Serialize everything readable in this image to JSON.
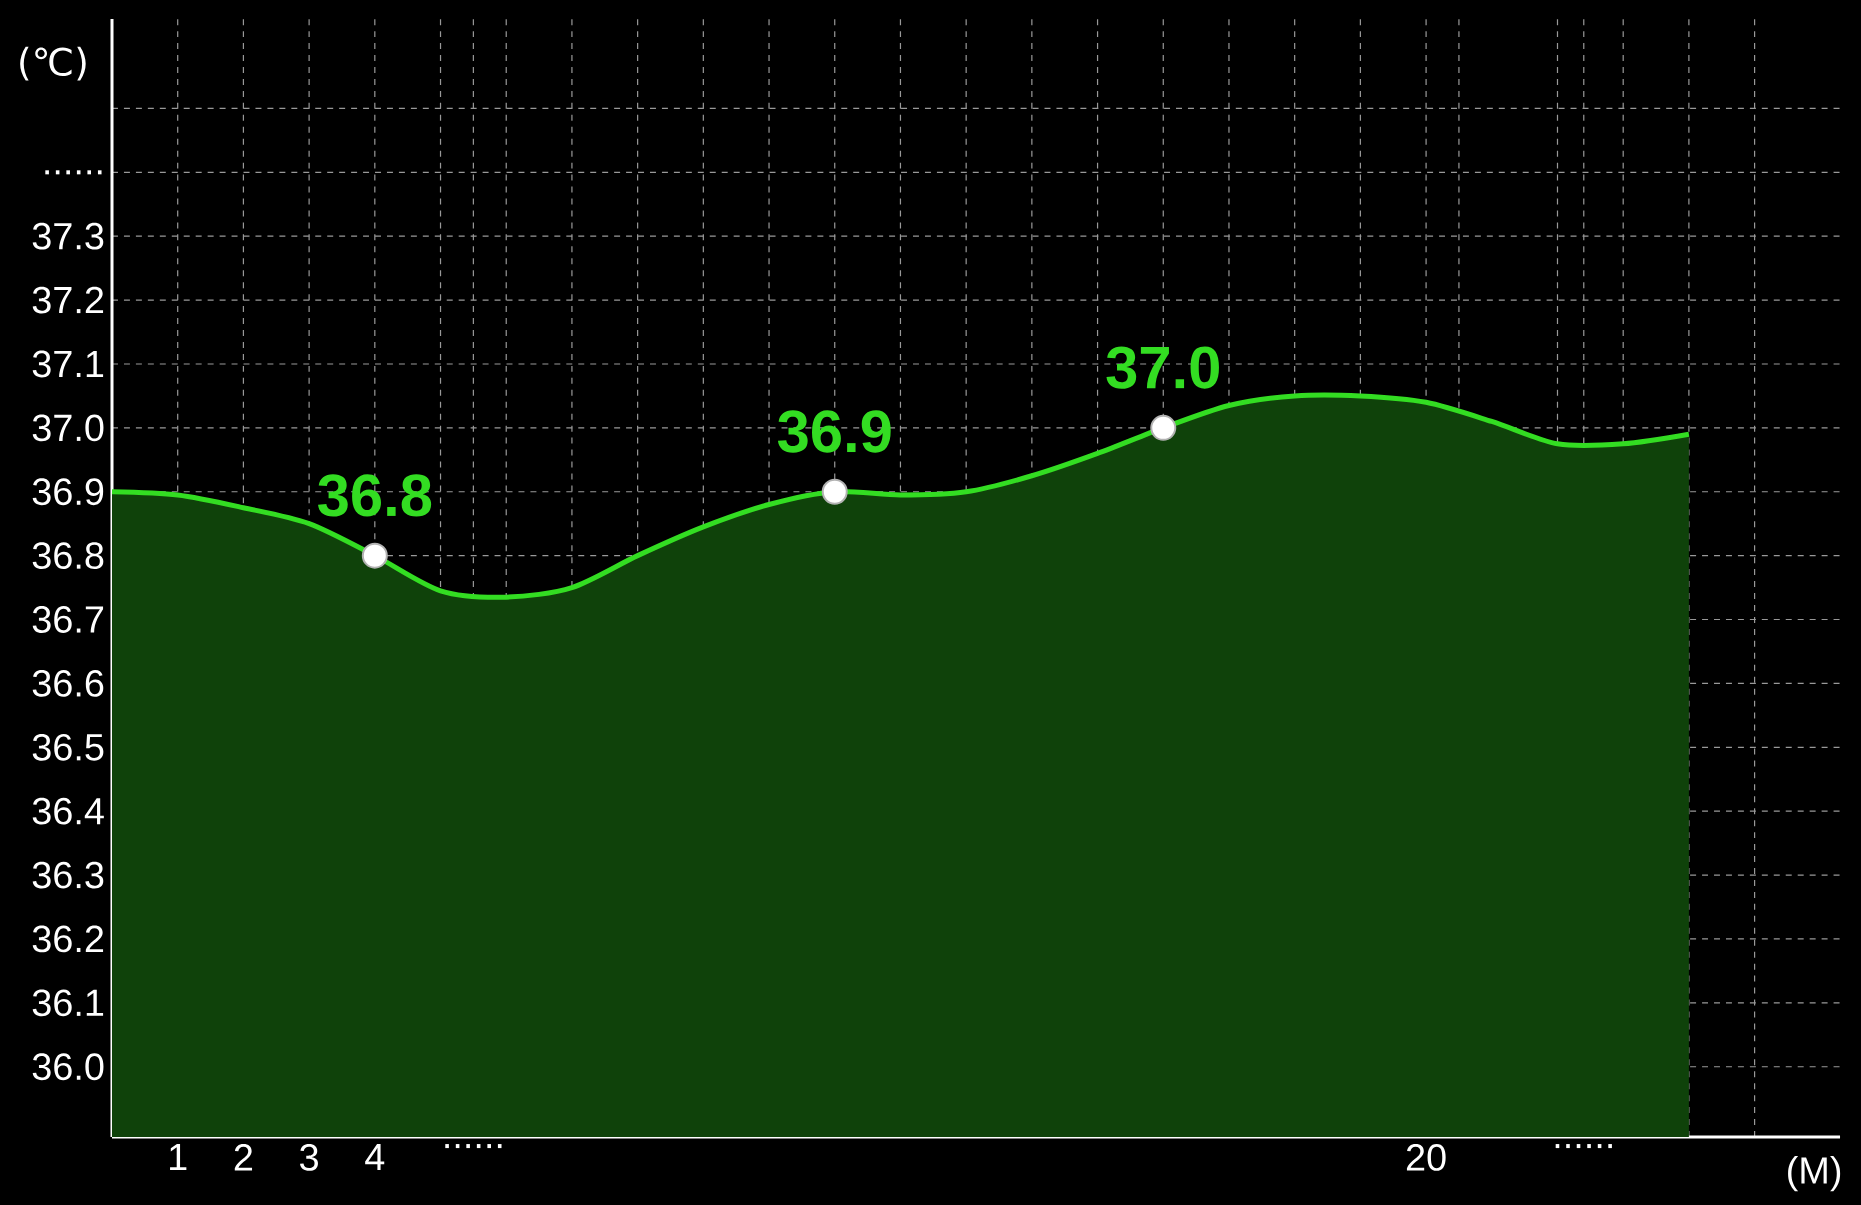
{
  "chart_data": {
    "type": "area",
    "xlabel": "(M)",
    "ylabel": "(℃)",
    "xlim": [
      0,
      26.3
    ],
    "ylim": [
      35.89,
      37.64
    ],
    "xticks": [
      {
        "value": 1,
        "label": "1"
      },
      {
        "value": 2,
        "label": "2"
      },
      {
        "value": 3,
        "label": "3"
      },
      {
        "value": 4,
        "label": "4"
      },
      {
        "value": 5,
        "label": null
      },
      {
        "value": 5.5,
        "label": "......"
      },
      {
        "value": 6,
        "label": null
      },
      {
        "value": 7,
        "label": null
      },
      {
        "value": 8,
        "label": null
      },
      {
        "value": 9,
        "label": null
      },
      {
        "value": 10,
        "label": null
      },
      {
        "value": 11,
        "label": null
      },
      {
        "value": 12,
        "label": null
      },
      {
        "value": 13,
        "label": null
      },
      {
        "value": 14,
        "label": null
      },
      {
        "value": 15,
        "label": null
      },
      {
        "value": 16,
        "label": null
      },
      {
        "value": 17,
        "label": null
      },
      {
        "value": 18,
        "label": null
      },
      {
        "value": 19,
        "label": null
      },
      {
        "value": 20.5,
        "label": null
      },
      {
        "value": 20,
        "label": "20"
      },
      {
        "value": 22,
        "label": null
      },
      {
        "value": 22.4,
        "label": "......"
      },
      {
        "value": 23,
        "label": null
      },
      {
        "value": 24,
        "label": null
      },
      {
        "value": 25,
        "label": null
      }
    ],
    "yticks": [
      {
        "value": 36.0,
        "label": "36.0"
      },
      {
        "value": 36.1,
        "label": "36.1"
      },
      {
        "value": 36.2,
        "label": "36.2"
      },
      {
        "value": 36.3,
        "label": "36.3"
      },
      {
        "value": 36.4,
        "label": "36.4"
      },
      {
        "value": 36.5,
        "label": "36.5"
      },
      {
        "value": 36.6,
        "label": "36.6"
      },
      {
        "value": 36.7,
        "label": "36.7"
      },
      {
        "value": 36.8,
        "label": "36.8"
      },
      {
        "value": 36.9,
        "label": "36.9"
      },
      {
        "value": 37.0,
        "label": "37.0"
      },
      {
        "value": 37.1,
        "label": "37.1"
      },
      {
        "value": 37.2,
        "label": "37.2"
      },
      {
        "value": 37.3,
        "label": "37.3"
      },
      {
        "value": 37.4,
        "label": "......"
      },
      {
        "value": 37.5,
        "label": null
      }
    ],
    "grid": true,
    "series": [
      {
        "color": "#33dd22",
        "x": [
          0,
          1,
          2,
          3,
          4,
          5,
          6,
          7,
          8,
          9,
          10,
          11,
          12,
          13,
          14,
          15,
          16,
          17,
          18,
          19,
          20,
          21,
          22,
          23,
          24
        ],
        "values": [
          36.9,
          36.895,
          36.875,
          36.85,
          36.8,
          36.745,
          36.735,
          36.75,
          36.8,
          36.845,
          36.88,
          36.9,
          36.895,
          36.9,
          36.925,
          36.96,
          37.0,
          37.035,
          37.05,
          37.05,
          37.04,
          37.01,
          36.975,
          36.975,
          36.99
        ]
      },
      {
        "type": "scatter",
        "color": "#ffffff",
        "marker": "circle",
        "x": [
          4,
          11,
          16
        ],
        "values": [
          36.8,
          36.9,
          37.0
        ],
        "value_labels": [
          "36.8",
          "36.9",
          "37.0"
        ]
      }
    ]
  }
}
